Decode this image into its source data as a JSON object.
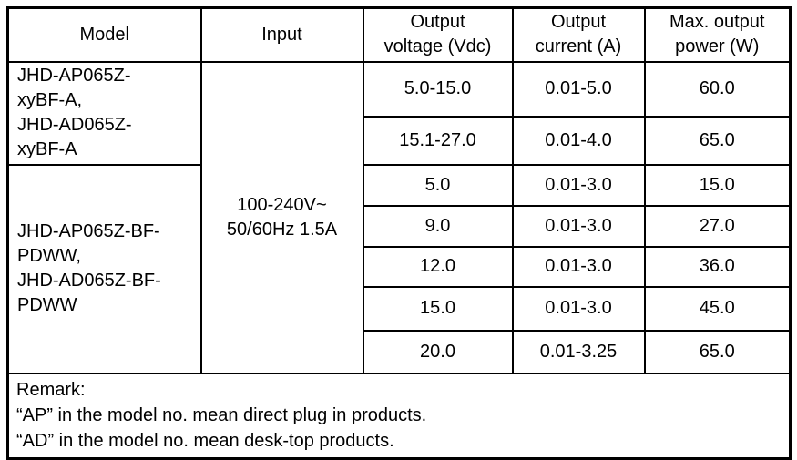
{
  "colors": {
    "background": "#ffffff",
    "border": "#000000",
    "text": "#000000"
  },
  "table": {
    "headers": [
      "Model",
      "Input",
      "Output\nvoltage (Vdc)",
      "Output\ncurrent (A)",
      "Max. output\npower (W)"
    ],
    "model_groups": [
      {
        "model": "JHD-AP065Z-\nxyBF-A,\nJHD-AD065Z-\nxyBF-A",
        "row_count": 2
      },
      {
        "model": "JHD-AP065Z-BF-\nPDWW,\nJHD-AD065Z-BF-\nPDWW",
        "row_count": 5
      }
    ],
    "input": "100-240V~\n50/60Hz 1.5A",
    "rows": [
      {
        "voltage": "5.0-15.0",
        "current": "0.01-5.0",
        "power": "60.0"
      },
      {
        "voltage": "15.1-27.0",
        "current": "0.01-4.0",
        "power": "65.0"
      },
      {
        "voltage": "5.0",
        "current": "0.01-3.0",
        "power": "15.0"
      },
      {
        "voltage": "9.0",
        "current": "0.01-3.0",
        "power": "27.0"
      },
      {
        "voltage": "12.0",
        "current": "0.01-3.0",
        "power": "36.0"
      },
      {
        "voltage": "15.0",
        "current": "0.01-3.0",
        "power": "45.0"
      },
      {
        "voltage": "20.0",
        "current": "0.01-3.25",
        "power": "65.0"
      }
    ],
    "remark": "Remark:\n“AP” in the model no. mean direct plug in products.\n“AD” in the model no. mean desk-top products."
  }
}
